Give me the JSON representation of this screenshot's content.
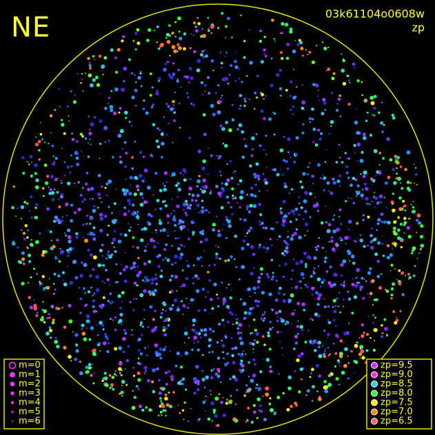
{
  "direction": "NE",
  "frame_id": "03k61104o0608w",
  "mode": "zp",
  "magnitude_legend": [
    "m=0",
    "m=1",
    "m=2",
    "m=3",
    "m=4",
    "m=5",
    "m=6"
  ],
  "zp_legend": [
    {
      "label": "zp=9.5",
      "color": "#cc33ff"
    },
    {
      "label": "zp=9.0",
      "color": "#ff33ff"
    },
    {
      "label": "zp=8.5",
      "color": "#33ccff"
    },
    {
      "label": "zp=8.0",
      "color": "#33ff33"
    },
    {
      "label": "zp=7.5",
      "color": "#ffee00"
    },
    {
      "label": "zp=7.0",
      "color": "#ff8c1a"
    },
    {
      "label": "zp=6.5",
      "color": "#ff6666"
    }
  ]
}
